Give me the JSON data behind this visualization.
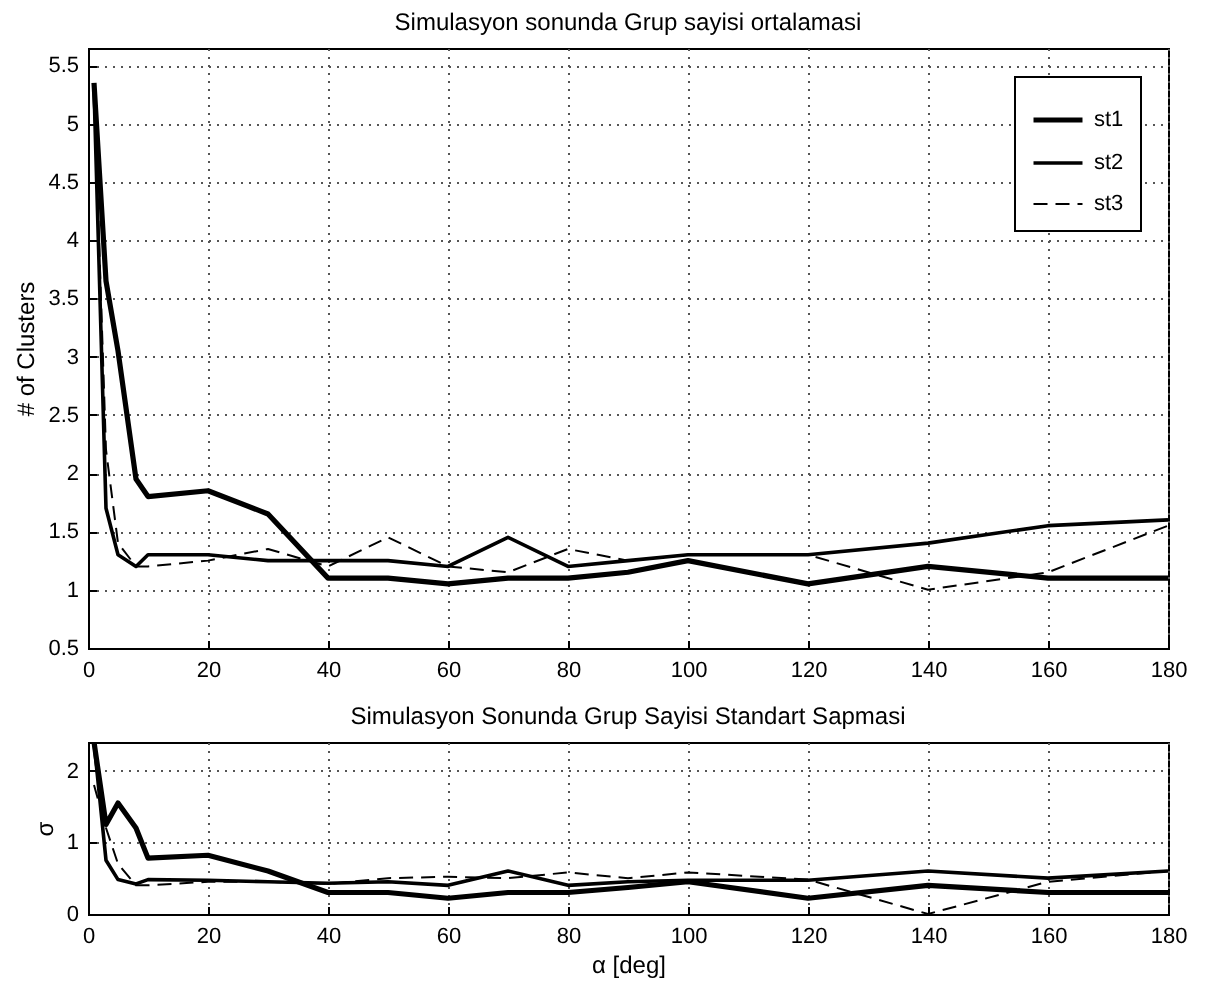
{
  "chart_data": [
    {
      "type": "line",
      "title": "Simulasyon sonunda Grup sayisi ortalamasi",
      "ylabel": "# of Clusters",
      "x": [
        1,
        3,
        5,
        8,
        10,
        20,
        30,
        40,
        50,
        60,
        70,
        80,
        90,
        100,
        120,
        140,
        160,
        180
      ],
      "series": [
        {
          "name": "st1",
          "color": "#000000",
          "line_style": "solid",
          "values": [
            5.35,
            3.65,
            3.05,
            1.95,
            1.8,
            1.85,
            1.65,
            1.1,
            1.1,
            1.05,
            1.1,
            1.1,
            1.15,
            1.25,
            1.05,
            1.2,
            1.1,
            1.1
          ]
        },
        {
          "name": "st2",
          "color": "#000000",
          "line_style": "solid",
          "values": [
            5.3,
            1.7,
            1.3,
            1.2,
            1.3,
            1.3,
            1.25,
            1.25,
            1.25,
            1.2,
            1.45,
            1.2,
            1.25,
            1.3,
            1.3,
            1.4,
            1.55,
            1.6
          ]
        },
        {
          "name": "st3",
          "color": "#000000",
          "line_style": "dashed",
          "values": [
            5.3,
            2.2,
            1.4,
            1.2,
            1.2,
            1.25,
            1.35,
            1.2,
            1.45,
            1.2,
            1.15,
            1.35,
            1.25,
            1.3,
            1.3,
            1.0,
            1.15,
            1.55
          ]
        }
      ],
      "xlim": [
        0,
        180
      ],
      "xticks": [
        0,
        20,
        40,
        60,
        80,
        100,
        120,
        140,
        160,
        180
      ],
      "ylim": [
        0.5,
        5.65
      ],
      "yticks": [
        0.5,
        1,
        1.5,
        2,
        2.5,
        3,
        3.5,
        4,
        4.5,
        5,
        5.5
      ],
      "grid": true,
      "legend": "top right",
      "marker": "none"
    },
    {
      "type": "line",
      "title": "Simulasyon Sonunda Grup Sayisi Standart Sapmasi",
      "xlabel": "α [deg]",
      "ylabel": "σ",
      "x": [
        1,
        3,
        5,
        8,
        10,
        20,
        30,
        40,
        50,
        60,
        70,
        80,
        90,
        100,
        120,
        140,
        160,
        180
      ],
      "series": [
        {
          "name": "st1",
          "color": "#000000",
          "line_style": "solid",
          "values": [
            2.4,
            1.25,
            1.55,
            1.2,
            0.78,
            0.82,
            0.6,
            0.3,
            0.3,
            0.22,
            0.3,
            0.3,
            0.37,
            0.45,
            0.22,
            0.4,
            0.3,
            0.3
          ]
        },
        {
          "name": "st2",
          "color": "#000000",
          "line_style": "solid",
          "values": [
            2.4,
            0.75,
            0.48,
            0.42,
            0.48,
            0.47,
            0.45,
            0.43,
            0.45,
            0.4,
            0.6,
            0.4,
            0.45,
            0.47,
            0.47,
            0.6,
            0.5,
            0.6
          ]
        },
        {
          "name": "st3",
          "color": "#000000",
          "line_style": "dashed",
          "values": [
            1.8,
            1.2,
            0.7,
            0.4,
            0.4,
            0.45,
            0.45,
            0.42,
            0.5,
            0.52,
            0.5,
            0.58,
            0.5,
            0.58,
            0.48,
            0.0,
            0.45,
            0.6
          ]
        }
      ],
      "xlim": [
        0,
        180
      ],
      "xticks": [
        0,
        20,
        40,
        60,
        80,
        100,
        120,
        140,
        160,
        180
      ],
      "ylim": [
        0,
        2.4
      ],
      "yticks": [
        0,
        1,
        2
      ],
      "grid": true,
      "legend": false,
      "marker": "none"
    }
  ]
}
